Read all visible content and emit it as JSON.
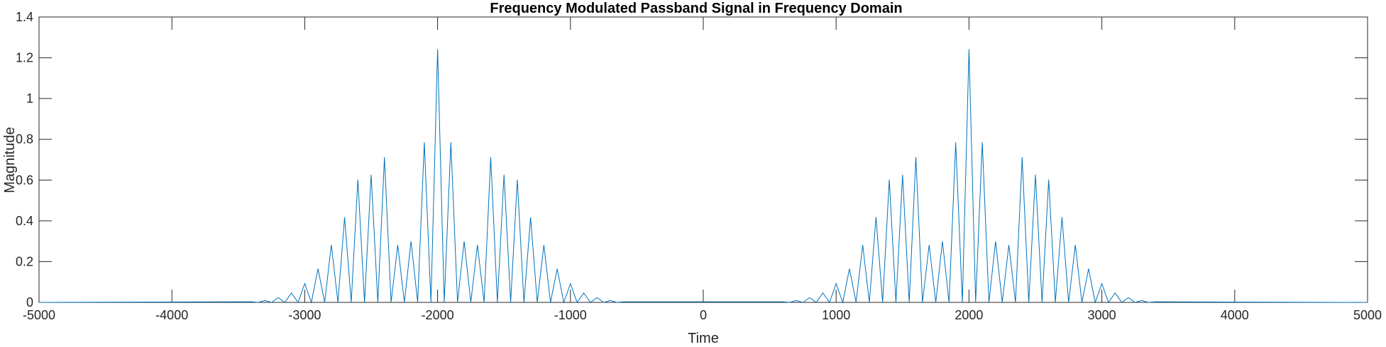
{
  "chart_data": {
    "type": "line",
    "title": "Frequency Modulated Passband Signal in Frequency Domain",
    "xlabel": "Time",
    "ylabel": "Magnitude",
    "xlim": [
      -5000,
      5000
    ],
    "ylim": [
      0,
      1.4
    ],
    "xticks": [
      -5000,
      -4000,
      -3000,
      -2000,
      -1000,
      0,
      1000,
      2000,
      3000,
      4000,
      5000
    ],
    "xtick_labels": [
      "-5000",
      "-4000",
      "-3000",
      "-2000",
      "-1000",
      "0",
      "1000",
      "2000",
      "3000",
      "4000",
      "5000"
    ],
    "yticks": [
      0,
      0.2,
      0.4,
      0.6,
      0.8,
      1,
      1.2,
      1.4
    ],
    "ytick_labels": [
      "0",
      "0.2",
      "0.4",
      "0.6",
      "0.8",
      "1",
      "1.2",
      "1.4"
    ],
    "grid": false,
    "line_color": "#0072BD",
    "axis_color": "#262626",
    "series": [
      {
        "x": [
          -5000,
          -3400,
          -3300,
          -3200,
          -3100,
          -3000,
          -2900,
          -2800,
          -2700,
          -2600,
          -2500,
          -2400,
          -2300,
          -2200,
          -2100,
          -2000,
          -1900,
          -1800,
          -1700,
          -1600,
          -1500,
          -1400,
          -1300,
          -1200,
          -1100,
          -1000,
          -900,
          -800,
          -700,
          -600,
          600,
          700,
          800,
          900,
          1000,
          1100,
          1200,
          1300,
          1400,
          1500,
          1600,
          1700,
          1800,
          1900,
          2000,
          2100,
          2200,
          2300,
          2400,
          2500,
          2600,
          2700,
          2800,
          2900,
          3000,
          3100,
          3200,
          3300,
          3400,
          5000
        ],
        "y": [
          0,
          0.003,
          0.009,
          0.023,
          0.046,
          0.092,
          0.165,
          0.282,
          0.418,
          0.602,
          0.626,
          0.712,
          0.282,
          0.3,
          0.785,
          1.242,
          0.785,
          0.3,
          0.282,
          0.712,
          0.626,
          0.602,
          0.418,
          0.282,
          0.165,
          0.092,
          0.046,
          0.023,
          0.009,
          0.003,
          0.003,
          0.009,
          0.023,
          0.046,
          0.092,
          0.165,
          0.282,
          0.418,
          0.602,
          0.626,
          0.712,
          0.282,
          0.3,
          0.785,
          1.242,
          0.785,
          0.3,
          0.282,
          0.712,
          0.626,
          0.602,
          0.418,
          0.282,
          0.165,
          0.092,
          0.046,
          0.023,
          0.009,
          0.003,
          0
        ]
      }
    ]
  }
}
